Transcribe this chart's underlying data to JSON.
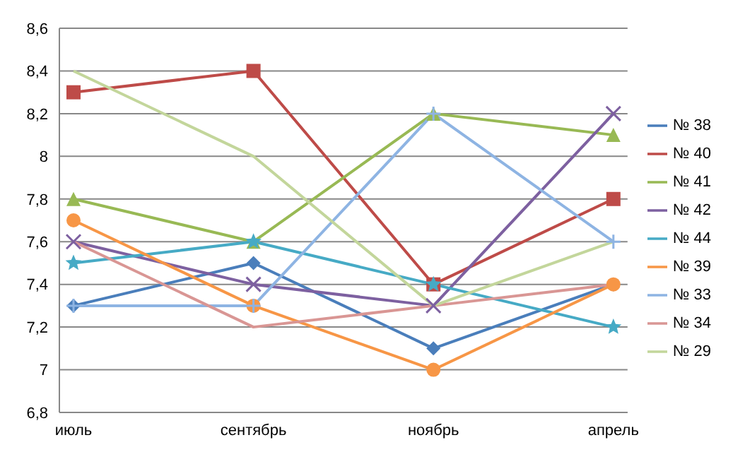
{
  "chart_data": {
    "type": "line",
    "categories": [
      "июль",
      "сентябрь",
      "ноябрь",
      "апрель"
    ],
    "series": [
      {
        "name": "№ 38",
        "color": "#4a7ebb",
        "marker": "diamond",
        "values": [
          7.3,
          7.5,
          7.1,
          7.4
        ]
      },
      {
        "name": "№ 40",
        "color": "#be4b48",
        "marker": "square",
        "values": [
          8.3,
          8.4,
          7.4,
          7.8
        ]
      },
      {
        "name": "№ 41",
        "color": "#98b954",
        "marker": "triangle",
        "values": [
          7.8,
          7.6,
          8.2,
          8.1
        ]
      },
      {
        "name": "№ 42",
        "color": "#7d60a0",
        "marker": "cross",
        "values": [
          7.6,
          7.4,
          7.3,
          8.2
        ]
      },
      {
        "name": "№ 44",
        "color": "#46aac5",
        "marker": "star",
        "values": [
          7.5,
          7.6,
          7.4,
          7.2
        ]
      },
      {
        "name": "№ 39",
        "color": "#f79646",
        "marker": "circle",
        "values": [
          7.7,
          7.3,
          7.0,
          7.4
        ]
      },
      {
        "name": "№ 33",
        "color": "#8eb4e3",
        "marker": "plus",
        "values": [
          7.3,
          7.3,
          8.2,
          7.6
        ]
      },
      {
        "name": "№ 34",
        "color": "#d99694",
        "marker": "none",
        "values": [
          7.6,
          7.2,
          7.3,
          7.4
        ]
      },
      {
        "name": "№ 29",
        "color": "#c3d69b",
        "marker": "none",
        "values": [
          8.4,
          8.0,
          7.3,
          7.6
        ]
      }
    ],
    "ylim": [
      6.8,
      8.6
    ],
    "yticks": [
      {
        "value": 6.8,
        "label": "6,8"
      },
      {
        "value": 7,
        "label": "7"
      },
      {
        "value": 7.2,
        "label": "7,2"
      },
      {
        "value": 7.4,
        "label": "7,4"
      },
      {
        "value": 7.6,
        "label": "7,6"
      },
      {
        "value": 7.8,
        "label": "7,8"
      },
      {
        "value": 8,
        "label": "8"
      },
      {
        "value": 8.2,
        "label": "8,2"
      },
      {
        "value": 8.4,
        "label": "8,4"
      },
      {
        "value": 8.6,
        "label": "8,6"
      }
    ],
    "grid": "y",
    "legend": "right",
    "line_style": "solid"
  }
}
